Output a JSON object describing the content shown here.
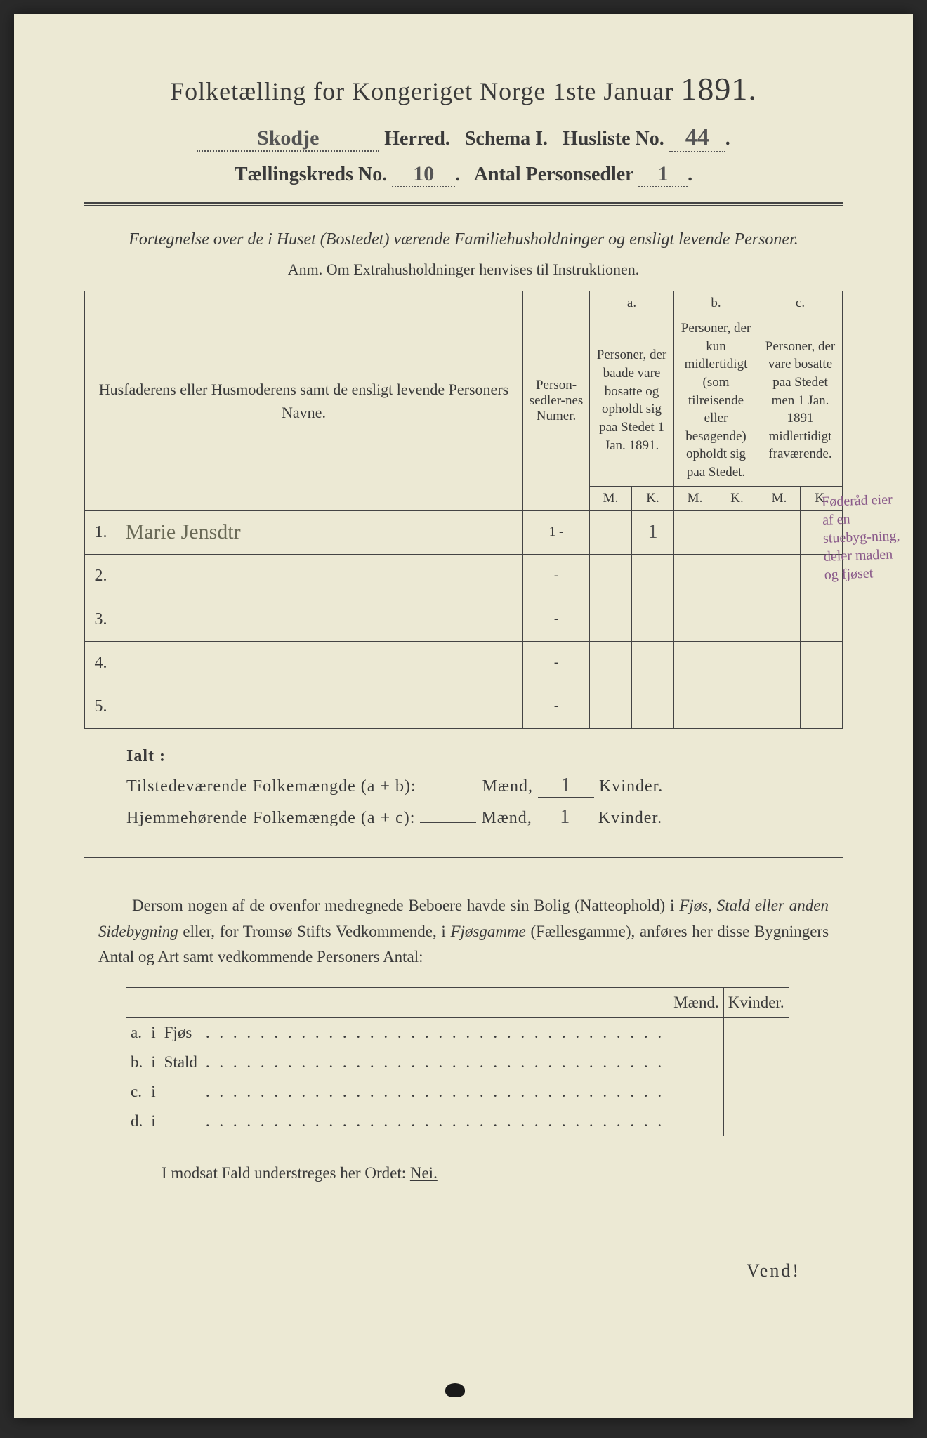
{
  "colors": {
    "paper": "#ece9d4",
    "ink": "#3a3a3a",
    "rule": "#444444",
    "handwriting": "#6a6a57",
    "marginal": "#8a5a8a",
    "background": "#2a2a2a"
  },
  "typography": {
    "title_fontsize": 36,
    "year_fontsize": 46,
    "header_fontsize": 28,
    "subtitle_fontsize": 24,
    "table_header_fontsize": 19,
    "body_fontsize": 23,
    "cursive_fontsize": 30
  },
  "header": {
    "title_prefix": "Folketælling for Kongeriget Norge 1ste Januar",
    "year": "1891.",
    "herred_label": "Herred.",
    "herred_value": "Skodje",
    "schema_label": "Schema I.",
    "husliste_label": "Husliste No.",
    "husliste_value": "44",
    "kreds_label": "Tællingskreds No.",
    "kreds_value": "10",
    "antal_label": "Antal Personsedler",
    "antal_value": "1"
  },
  "subtitle": {
    "line": "Fortegnelse over de i Huset (Bostedet) værende Familiehusholdninger og ensligt levende Personer.",
    "anm": "Anm. Om Extrahusholdninger henvises til Instruktionen."
  },
  "table": {
    "col_names": "Husfaderens eller Husmoderens samt de ensligt levende Personers Navne.",
    "col_numer": "Person-sedler-nes Numer.",
    "col_a_label": "a.",
    "col_a_text": "Personer, der baade vare bosatte og opholdt sig paa Stedet 1 Jan. 1891.",
    "col_b_label": "b.",
    "col_b_text": "Personer, der kun midlertidigt (som tilreisende eller besøgende) opholdt sig paa Stedet.",
    "col_c_label": "c.",
    "col_c_text": "Personer, der vare bosatte paa Stedet men 1 Jan. 1891 midlertidigt fraværende.",
    "m": "M.",
    "k": "K.",
    "rows": [
      {
        "n": "1.",
        "name": "Marie Jensdtr",
        "numer": "1 -",
        "a_m": "",
        "a_k": "1",
        "b_m": "",
        "b_k": "",
        "c_m": "",
        "c_k": ""
      },
      {
        "n": "2.",
        "name": "",
        "numer": "-",
        "a_m": "",
        "a_k": "",
        "b_m": "",
        "b_k": "",
        "c_m": "",
        "c_k": ""
      },
      {
        "n": "3.",
        "name": "",
        "numer": "-",
        "a_m": "",
        "a_k": "",
        "b_m": "",
        "b_k": "",
        "c_m": "",
        "c_k": ""
      },
      {
        "n": "4.",
        "name": "",
        "numer": "-",
        "a_m": "",
        "a_k": "",
        "b_m": "",
        "b_k": "",
        "c_m": "",
        "c_k": ""
      },
      {
        "n": "5.",
        "name": "",
        "numer": "-",
        "a_m": "",
        "a_k": "",
        "b_m": "",
        "b_k": "",
        "c_m": "",
        "c_k": ""
      }
    ]
  },
  "marginal_note": "Føderåd eier af en stuebyg-ning, deler maden og fjøset",
  "ialt": {
    "label": "Ialt :",
    "line1_label": "Tilstedeværende Folkemængde (a + b):",
    "line2_label": "Hjemmehørende Folkemængde (a + c):",
    "maend": "Mænd,",
    "kvinder": "Kvinder.",
    "line1_m": "",
    "line1_k": "1",
    "line2_m": "",
    "line2_k": "1"
  },
  "paragraph": {
    "text1": "Dersom nogen af de ovenfor medregnede Beboere havde sin Bolig (Natteophold) i ",
    "italic1": "Fjøs, Stald eller anden Sidebygning",
    "text2": " eller, for Tromsø Stifts Vedkommende, i ",
    "italic2": "Fjøsgamme",
    "text3": " (Fællesgamme), anføres her disse Bygningers Antal og Art samt vedkommende Personers Antal:"
  },
  "bottom_table": {
    "maend": "Mænd.",
    "kvinder": "Kvinder.",
    "rows": [
      {
        "letter": "a.",
        "i": "i",
        "label": "Fjøs",
        "m": "",
        "k": ""
      },
      {
        "letter": "b.",
        "i": "i",
        "label": "Stald",
        "m": "",
        "k": ""
      },
      {
        "letter": "c.",
        "i": "i",
        "label": "",
        "m": "",
        "k": ""
      },
      {
        "letter": "d.",
        "i": "i",
        "label": "",
        "m": "",
        "k": ""
      }
    ]
  },
  "modsat": "I modsat Fald understreges her Ordet: ",
  "nei": "Nei.",
  "vend": "Vend!"
}
